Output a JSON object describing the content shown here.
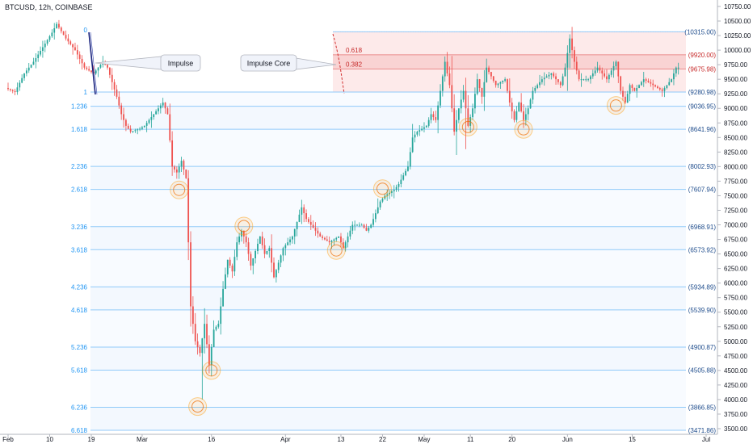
{
  "header": {
    "symbol": "BTCUSD, 12h, COINBASE"
  },
  "chart_data": {
    "type": "candlestick",
    "x_ticks": [
      "Feb",
      "10",
      "19",
      "Mar",
      "16",
      "Apr",
      "13",
      "22",
      "May",
      "11",
      "20",
      "Jun",
      "15",
      "Jul"
    ],
    "y_ticks": [
      "10750.00",
      "10500.00",
      "10250.00",
      "10000.00",
      "9750.00",
      "9500.00",
      "9250.00",
      "9000.00",
      "8750.00",
      "8500.00",
      "8250.00",
      "8000.00",
      "7750.00",
      "7500.00",
      "7250.00",
      "7000.00",
      "6750.00",
      "6500.00",
      "6250.00",
      "6000.00",
      "5750.00",
      "5500.00",
      "5250.00",
      "5000.00",
      "4750.00",
      "4500.00",
      "4250.00",
      "4000.00",
      "3750.00",
      "3500.00"
    ],
    "y_range": [
      3400,
      10900
    ],
    "fib_extension": [
      {
        "ratio": "0",
        "price": 10315.0,
        "value_label": "(10315.00)"
      },
      {
        "ratio": "1",
        "price": 9280.98,
        "value_label": "(9280.98)"
      },
      {
        "ratio": "1.236",
        "price": 9036.95,
        "value_label": "(9036.95)"
      },
      {
        "ratio": "1.618",
        "price": 8641.96,
        "value_label": "(8641.96)"
      },
      {
        "ratio": "2.236",
        "price": 8002.93,
        "value_label": "(8002.93)"
      },
      {
        "ratio": "2.618",
        "price": 7607.94,
        "value_label": "(7607.94)"
      },
      {
        "ratio": "3.236",
        "price": 6968.91,
        "value_label": "(6968.91)"
      },
      {
        "ratio": "3.618",
        "price": 6573.92,
        "value_label": "(6573.92)"
      },
      {
        "ratio": "4.236",
        "price": 5934.89,
        "value_label": "(5934.89)"
      },
      {
        "ratio": "4.618",
        "price": 5539.9,
        "value_label": "(5539.90)"
      },
      {
        "ratio": "5.236",
        "price": 4900.87,
        "value_label": "(4900.87)"
      },
      {
        "ratio": "5.618",
        "price": 4505.88,
        "value_label": "(4505.88)"
      },
      {
        "ratio": "6.236",
        "price": 3866.85,
        "value_label": "(3866.85)"
      },
      {
        "ratio": "6.618",
        "price": 3471.86,
        "value_label": "(3471.86)"
      }
    ],
    "fib_retracement": [
      {
        "ratio": "0.618",
        "price": 9920.0,
        "value_label": "(9920.00)"
      },
      {
        "ratio": "0.382",
        "price": 9675.98,
        "value_label": "(9675.98)"
      }
    ],
    "annotations": [
      "Impulse",
      "Impulse Core"
    ],
    "circled_points": [
      {
        "date": "Mar 13",
        "price": 7600
      },
      {
        "date": "Mar 16",
        "price": 4500
      },
      {
        "date": "Mar 13",
        "price": 3880
      },
      {
        "date": "Mar 25",
        "price": 6980
      },
      {
        "date": "Apr 15",
        "price": 6560
      },
      {
        "date": "Apr 23",
        "price": 7620
      },
      {
        "date": "May 12",
        "price": 8680
      },
      {
        "date": "May 22",
        "price": 8640
      },
      {
        "date": "Jun 11",
        "price": 9050
      }
    ],
    "colors": {
      "up": "#26a69a",
      "down": "#ef5350",
      "fib_line": "#90caf9",
      "fib_label": "#2196f3",
      "retracement_zone": "#fce4e4",
      "impulse_leg": "#1a237e",
      "circle": "#ff9800"
    }
  }
}
